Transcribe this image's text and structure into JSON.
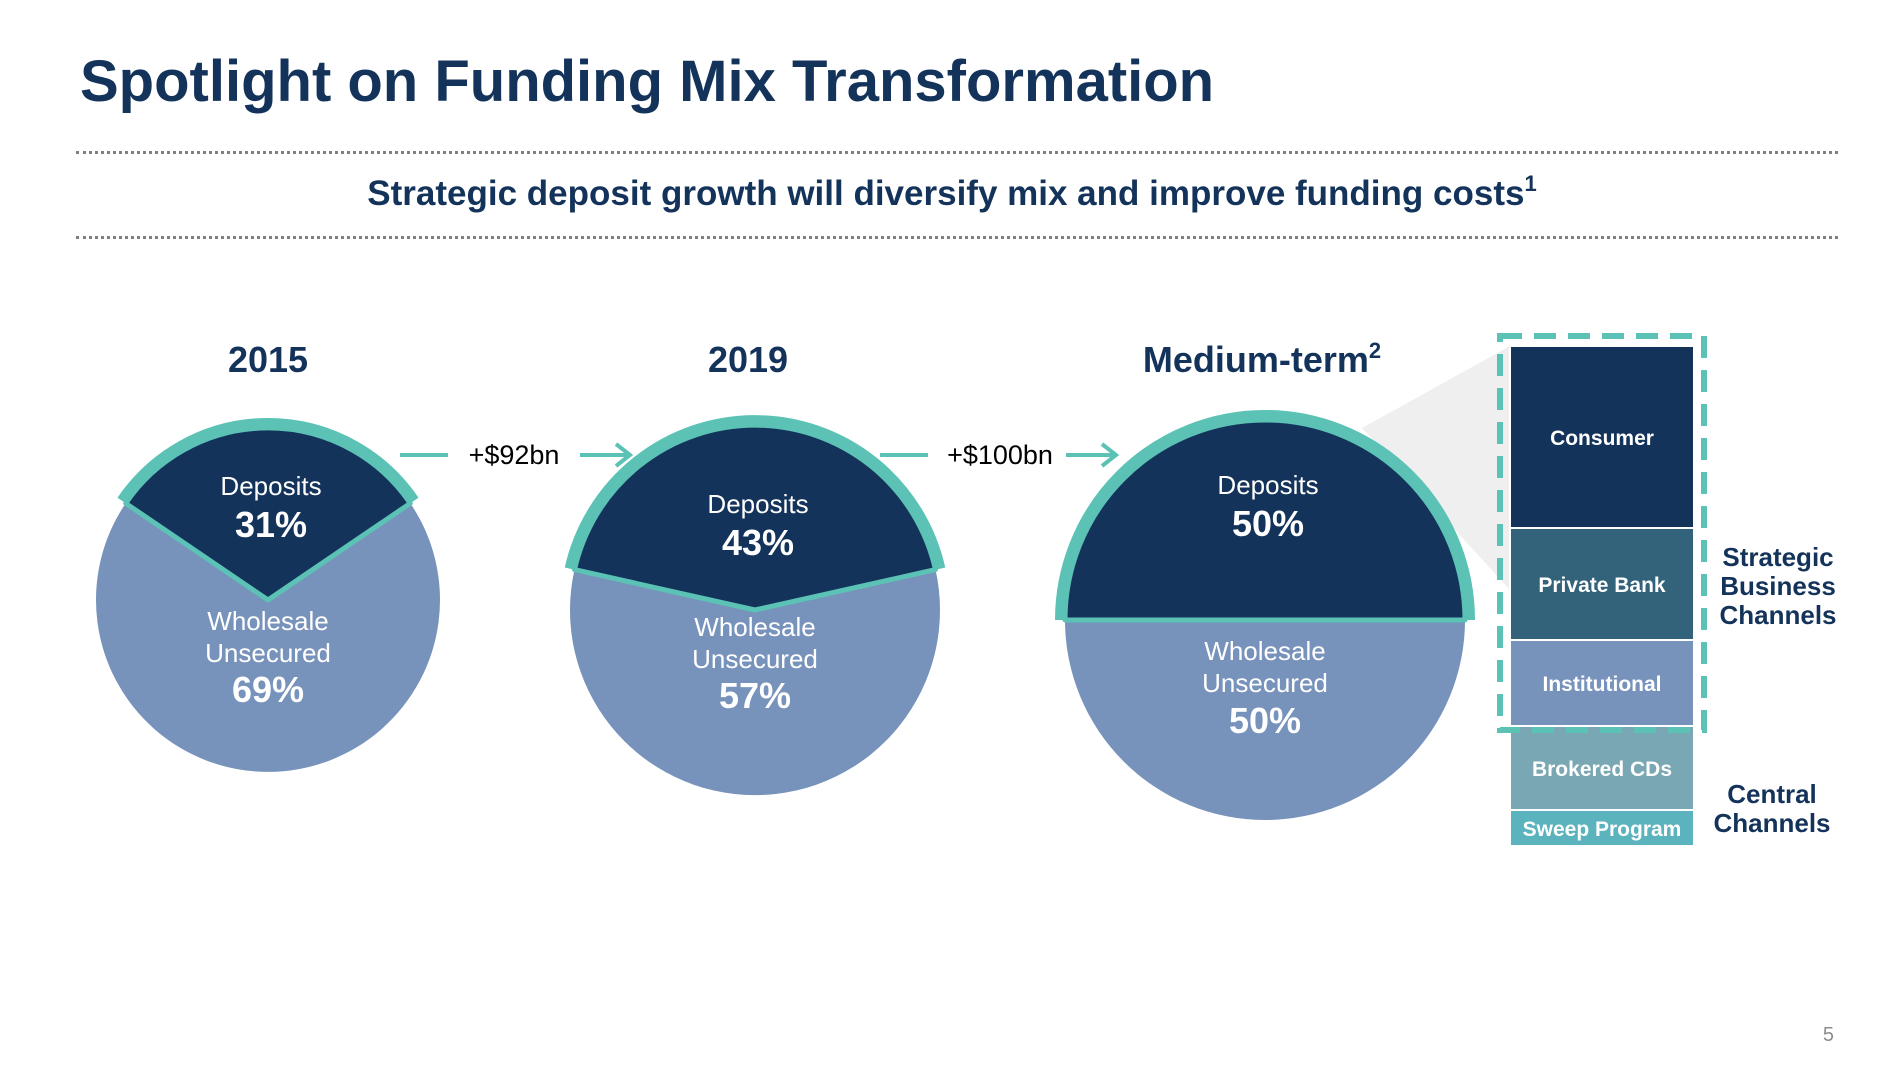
{
  "title": "Spotlight on Funding Mix Transformation",
  "subtitle": {
    "text": "Strategic deposit growth will diversify mix and improve funding costs",
    "footnote": "1"
  },
  "page_number": "5",
  "colors": {
    "title": "#14335a",
    "deposits": "#14335a",
    "wholesale": "#7792bb",
    "accent_teal": "#5bc2b5",
    "consumer": "#14335a",
    "private_bank": "#33637a",
    "institutional": "#7792bb",
    "brokered_cds": "#79a7b3",
    "sweep_program": "#5bb3bd"
  },
  "chart_data": [
    {
      "type": "pie",
      "title": "2015",
      "title_sup": "",
      "slices": [
        {
          "name": "Deposits",
          "value": 31,
          "label": "31%"
        },
        {
          "name": "Wholesale Unsecured",
          "value": 69,
          "label": "69%"
        }
      ]
    },
    {
      "type": "pie",
      "title": "2019",
      "title_sup": "",
      "slices": [
        {
          "name": "Deposits",
          "value": 43,
          "label": "43%"
        },
        {
          "name": "Wholesale Unsecured",
          "value": 57,
          "label": "57%"
        }
      ]
    },
    {
      "type": "pie",
      "title": "Medium-term",
      "title_sup": "2",
      "slices": [
        {
          "name": "Deposits",
          "value": 50,
          "label": "50%"
        },
        {
          "name": "Wholesale Unsecured",
          "value": 50,
          "label": "50%"
        }
      ]
    }
  ],
  "transitions": [
    {
      "label": "+$92bn"
    },
    {
      "label": "+$100bn"
    }
  ],
  "deposit_channels": {
    "segments": [
      {
        "name": "Consumer",
        "group": "strategic"
      },
      {
        "name": "Private Bank",
        "group": "strategic"
      },
      {
        "name": "Institutional",
        "group": "strategic"
      },
      {
        "name": "Brokered CDs",
        "group": "central"
      },
      {
        "name": "Sweep Program",
        "group": "central"
      }
    ],
    "groups": {
      "strategic": [
        "Strategic",
        "Business",
        "Channels"
      ],
      "central": [
        "Central",
        "Channels"
      ]
    }
  }
}
